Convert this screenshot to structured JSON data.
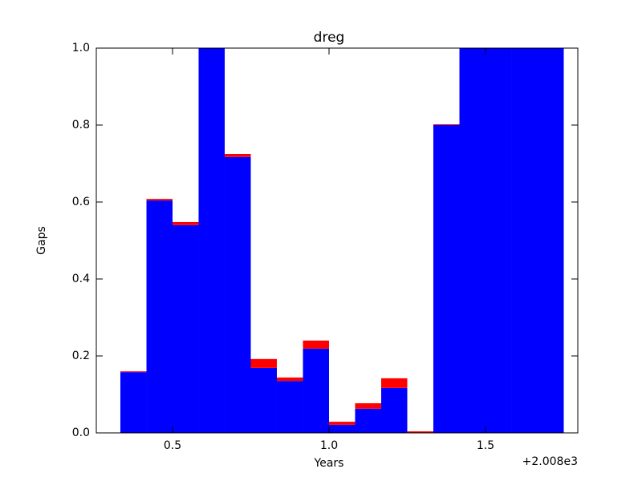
{
  "chart_data": {
    "type": "histogram",
    "title": "dreg",
    "x_label": "Years",
    "y_label": "Gaps",
    "x_offset_label": "+2.008e3",
    "bins": [
      0.3333,
      0.4167,
      0.5,
      0.5833,
      0.6667,
      0.75,
      0.8333,
      0.9167,
      1,
      1.0833,
      1.1667,
      1.25,
      1.3333,
      1.4167,
      1.5,
      1.5833,
      1.6667,
      1.75
    ],
    "series": [
      {
        "color": "#0000ff",
        "values": [
          0.158,
          0.604,
          0.54,
          1,
          0.717,
          0.169,
          0.135,
          0.219,
          0.021,
          0.063,
          0.117,
          0.001,
          0.8,
          1,
          1,
          1,
          1
        ]
      },
      {
        "color": "#ff0000",
        "values": [
          0.002,
          0.004,
          0.008,
          0,
          0.008,
          0.023,
          0.009,
          0.021,
          0.008,
          0.014,
          0.025,
          0.003,
          0.002,
          0,
          0,
          0,
          0
        ]
      }
    ],
    "xlim": [
      0.2564,
      1.7949
    ],
    "ylim": [
      0,
      1
    ],
    "xticks": [
      0.5,
      {
        "value": 1,
        "label": "1.0"
      },
      1.5
    ],
    "yticks": [
      {
        "value": 0,
        "label": "0.0"
      },
      0.2,
      0.4,
      0.6,
      0.8,
      {
        "value": 1,
        "label": "1.0"
      }
    ],
    "grid": false
  }
}
